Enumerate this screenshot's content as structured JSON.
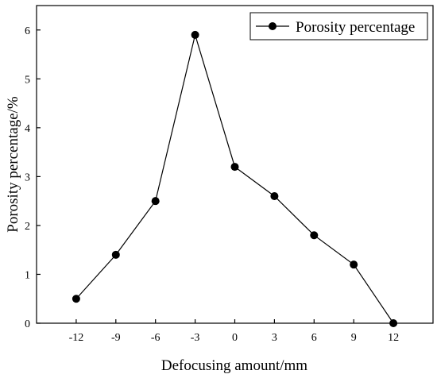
{
  "chart_data": {
    "type": "line",
    "title": "",
    "xlabel": "Defocusing amount/mm",
    "ylabel": "Porosity percentage/%",
    "x_ticks": [
      "-12",
      "-9",
      "-6",
      "-3",
      "0",
      "3",
      "6",
      "9",
      "12"
    ],
    "y_ticks": [
      "0",
      "1",
      "2",
      "3",
      "4",
      "5",
      "6"
    ],
    "xlim": [
      -15,
      15
    ],
    "ylim": [
      0,
      6.5
    ],
    "grid": false,
    "legend_position": "top-right",
    "series": [
      {
        "name": "Porosity percentage",
        "color": "#000000",
        "marker": "filled-circle",
        "x": [
          -12,
          -9,
          -6,
          -3,
          0,
          3,
          6,
          9,
          12
        ],
        "y": [
          0.5,
          1.4,
          2.5,
          5.9,
          3.2,
          2.6,
          1.8,
          1.2,
          0
        ]
      }
    ]
  }
}
